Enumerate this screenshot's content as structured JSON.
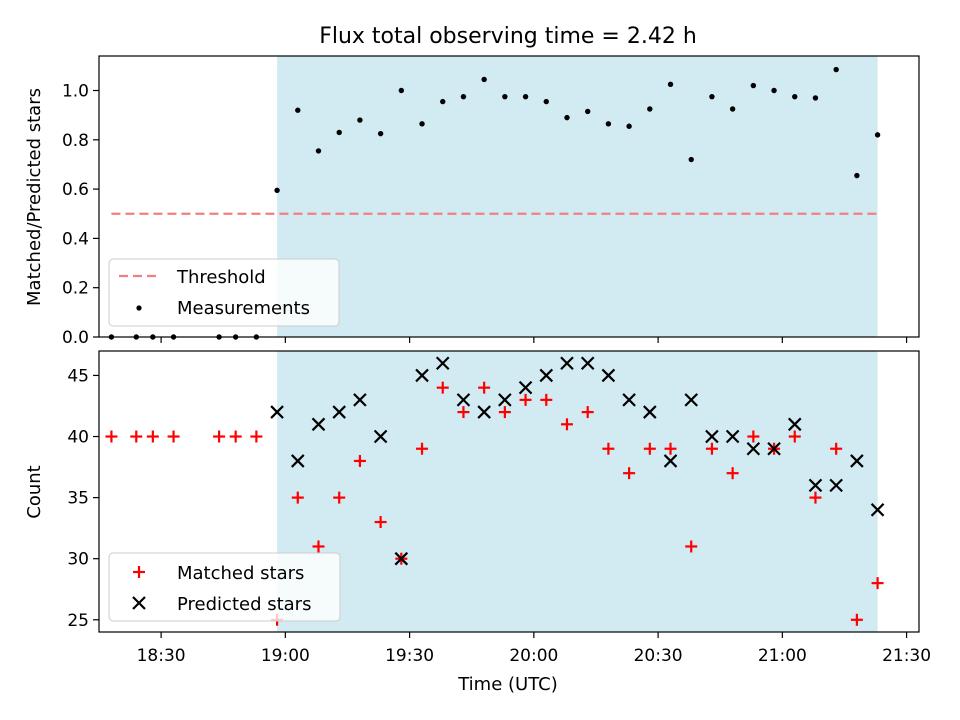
{
  "chart_data": [
    {
      "type": "scatter",
      "panel": "top",
      "title": "Flux total observing time = 2.42 h",
      "ylabel": "Matched/Predicted stars",
      "ylim": [
        0,
        1.14
      ],
      "yticks": [
        0.0,
        0.2,
        0.4,
        0.6,
        0.8,
        1.0
      ],
      "ytick_labels": [
        "0.0",
        "0.2",
        "0.4",
        "0.6",
        "0.8",
        "1.0"
      ],
      "shaded_interval": [
        "18:58",
        "21:23"
      ],
      "threshold": {
        "name": "Threshold",
        "value": 0.5,
        "x_start": "18:18",
        "x_end": "21:23",
        "style": "dashed",
        "color": "#f08080"
      },
      "series": [
        {
          "name": "Measurements",
          "color": "#000000",
          "marker": "dot",
          "x": [
            "18:18",
            "18:24",
            "18:28",
            "18:33",
            "18:44",
            "18:48",
            "18:53",
            "18:58",
            "19:03",
            "19:08",
            "19:13",
            "19:18",
            "19:23",
            "19:28",
            "19:33",
            "19:38",
            "19:43",
            "19:48",
            "19:53",
            "19:58",
            "20:03",
            "20:08",
            "20:13",
            "20:18",
            "20:23",
            "20:28",
            "20:33",
            "20:38",
            "20:43",
            "20:48",
            "20:53",
            "20:58",
            "21:03",
            "21:08",
            "21:13",
            "21:18",
            "21:23"
          ],
          "y": [
            0,
            0,
            0,
            0,
            0,
            0,
            0,
            0.595,
            0.92,
            0.755,
            0.83,
            0.88,
            0.825,
            1.0,
            0.865,
            0.955,
            0.975,
            1.045,
            0.975,
            0.975,
            0.955,
            0.89,
            0.915,
            0.865,
            0.855,
            0.925,
            1.025,
            0.72,
            0.975,
            0.925,
            1.02,
            1.0,
            0.975,
            0.97,
            1.085,
            0.655,
            0.82
          ]
        }
      ],
      "legend": {
        "position": "lower-left",
        "entries": [
          "Threshold",
          "Measurements"
        ]
      }
    },
    {
      "type": "scatter",
      "panel": "bottom",
      "xlabel": "Time (UTC)",
      "ylabel": "Count",
      "ylim": [
        24,
        47
      ],
      "yticks": [
        25,
        30,
        35,
        40,
        45
      ],
      "ytick_labels": [
        "25",
        "30",
        "35",
        "40",
        "45"
      ],
      "xticks": [
        "18:30",
        "19:00",
        "19:30",
        "20:00",
        "20:30",
        "21:00",
        "21:30"
      ],
      "xlim": [
        "18:15",
        "21:33"
      ],
      "series": [
        {
          "name": "Matched stars",
          "color": "#ff0000",
          "marker": "plus",
          "x": [
            "18:18",
            "18:24",
            "18:28",
            "18:33",
            "18:44",
            "18:48",
            "18:53",
            "18:58",
            "19:03",
            "19:08",
            "19:13",
            "19:18",
            "19:23",
            "19:28",
            "19:33",
            "19:38",
            "19:43",
            "19:48",
            "19:53",
            "19:58",
            "20:03",
            "20:08",
            "20:13",
            "20:18",
            "20:23",
            "20:28",
            "20:33",
            "20:38",
            "20:43",
            "20:48",
            "20:53",
            "20:58",
            "21:03",
            "21:08",
            "21:13",
            "21:18",
            "21:23"
          ],
          "y": [
            40,
            40,
            40,
            40,
            40,
            40,
            40,
            25,
            35,
            31,
            35,
            38,
            33,
            30,
            39,
            44,
            42,
            44,
            42,
            43,
            43,
            41,
            42,
            39,
            37,
            39,
            39,
            31,
            39,
            37,
            40,
            39,
            40,
            35,
            39,
            25,
            28
          ]
        },
        {
          "name": "Predicted stars",
          "color": "#000000",
          "marker": "x",
          "x": [
            "18:58",
            "19:03",
            "19:08",
            "19:13",
            "19:18",
            "19:23",
            "19:28",
            "19:33",
            "19:38",
            "19:43",
            "19:48",
            "19:53",
            "19:58",
            "20:03",
            "20:08",
            "20:13",
            "20:18",
            "20:23",
            "20:28",
            "20:33",
            "20:38",
            "20:43",
            "20:48",
            "20:53",
            "20:58",
            "21:03",
            "21:08",
            "21:13",
            "21:18",
            "21:23"
          ],
          "y": [
            42,
            38,
            41,
            42,
            43,
            40,
            30,
            45,
            46,
            43,
            42,
            43,
            44,
            45,
            46,
            46,
            45,
            43,
            42,
            38,
            43,
            40,
            40,
            39,
            39,
            41,
            36,
            36,
            38,
            34
          ]
        }
      ],
      "legend": {
        "position": "lower-left",
        "entries": [
          "Matched stars",
          "Predicted stars"
        ]
      }
    }
  ],
  "colors": {
    "shade": "#add8e6",
    "threshold": "#f08080",
    "matched": "#ff0000",
    "predicted": "#000000",
    "measurement": "#000000"
  }
}
